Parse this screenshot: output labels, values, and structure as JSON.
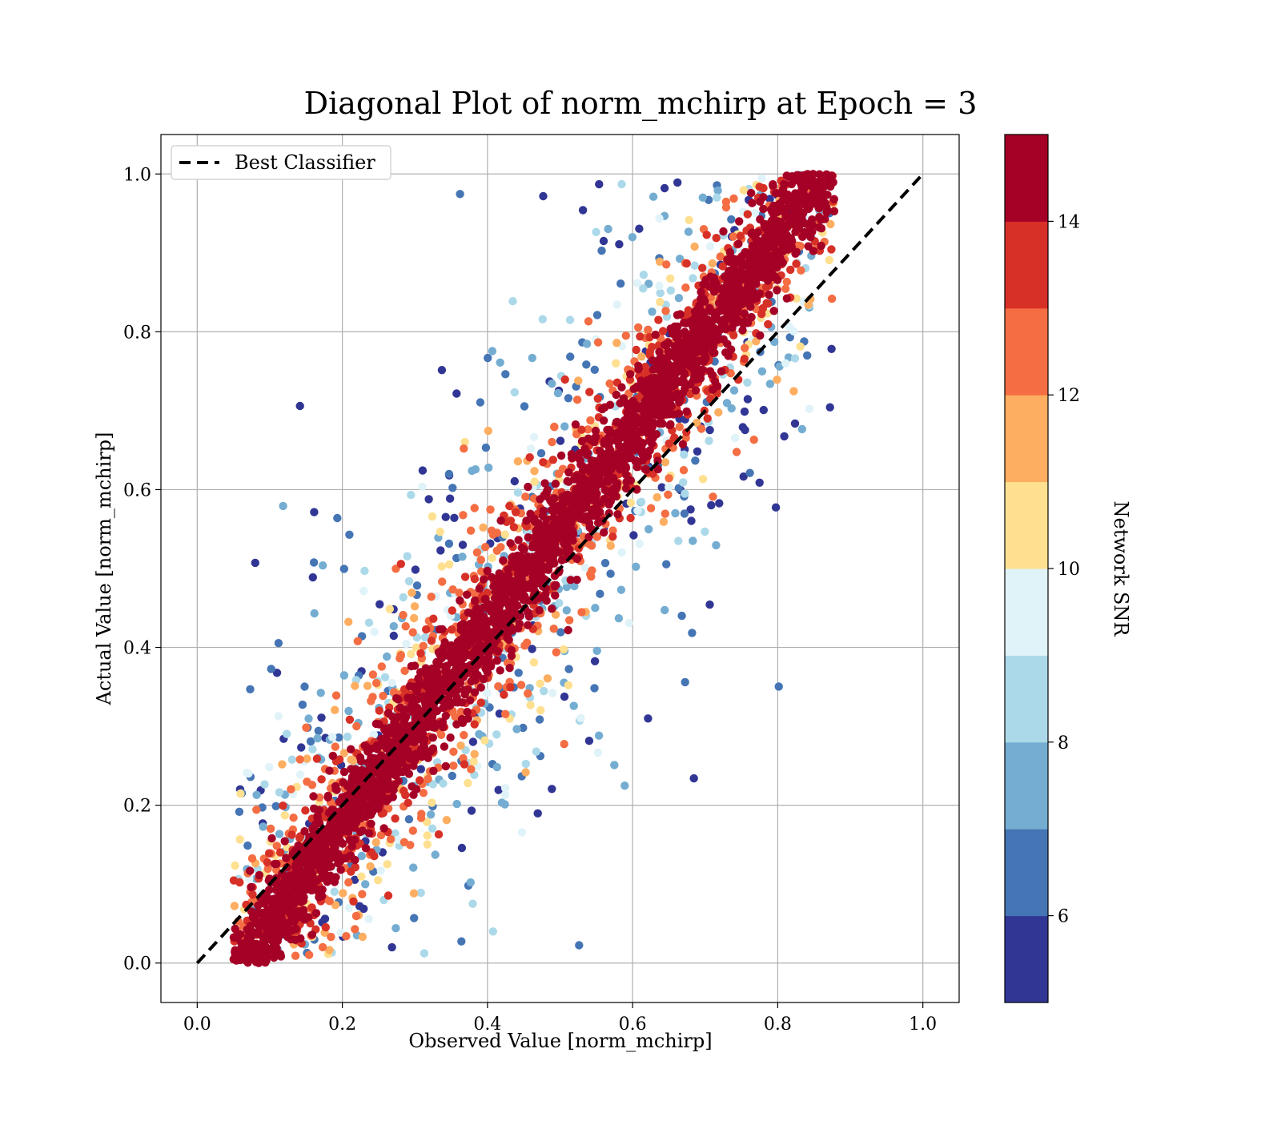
{
  "chart_data": {
    "type": "scatter",
    "title": "Diagonal Plot of norm_mchirp at Epoch = 3",
    "xlabel": "Observed Value [norm_mchirp]",
    "ylabel": "Actual Value [norm_mchirp]",
    "xlim": [
      -0.05,
      1.05
    ],
    "ylim": [
      -0.05,
      1.05
    ],
    "xticks": [
      "0.0",
      "0.2",
      "0.4",
      "0.6",
      "0.8",
      "1.0"
    ],
    "yticks": [
      "0.0",
      "0.2",
      "0.4",
      "0.6",
      "0.8",
      "1.0"
    ],
    "xtick_values": [
      0.0,
      0.2,
      0.4,
      0.6,
      0.8,
      1.0
    ],
    "ytick_values": [
      0.0,
      0.2,
      0.4,
      0.6,
      0.8,
      1.0
    ],
    "grid": true,
    "legend": {
      "position": "top-left",
      "entries": [
        "Best Classifier"
      ]
    },
    "reference_line": {
      "name": "Best Classifier",
      "x": [
        0,
        1
      ],
      "y": [
        0,
        1
      ],
      "style": "dashed",
      "color": "#000000"
    },
    "colorbar": {
      "label": "Network SNR",
      "range": [
        5,
        15
      ],
      "ticks": [
        "6",
        "8",
        "10",
        "12",
        "14"
      ],
      "tick_values": [
        6,
        8,
        10,
        12,
        14
      ],
      "colors": [
        "#313695",
        "#4575b4",
        "#74add1",
        "#abd9e9",
        "#e0f3f8",
        "#fee090",
        "#fdae61",
        "#f46d43",
        "#d73027",
        "#a50026"
      ]
    },
    "points_summary": {
      "description": "Dense scatter of predictions; high-SNR (dark red) points cluster along the diagonal, low-SNR points scatter widely",
      "x_range": [
        0.05,
        0.88
      ],
      "y_range": [
        0.0,
        1.0
      ]
    }
  }
}
